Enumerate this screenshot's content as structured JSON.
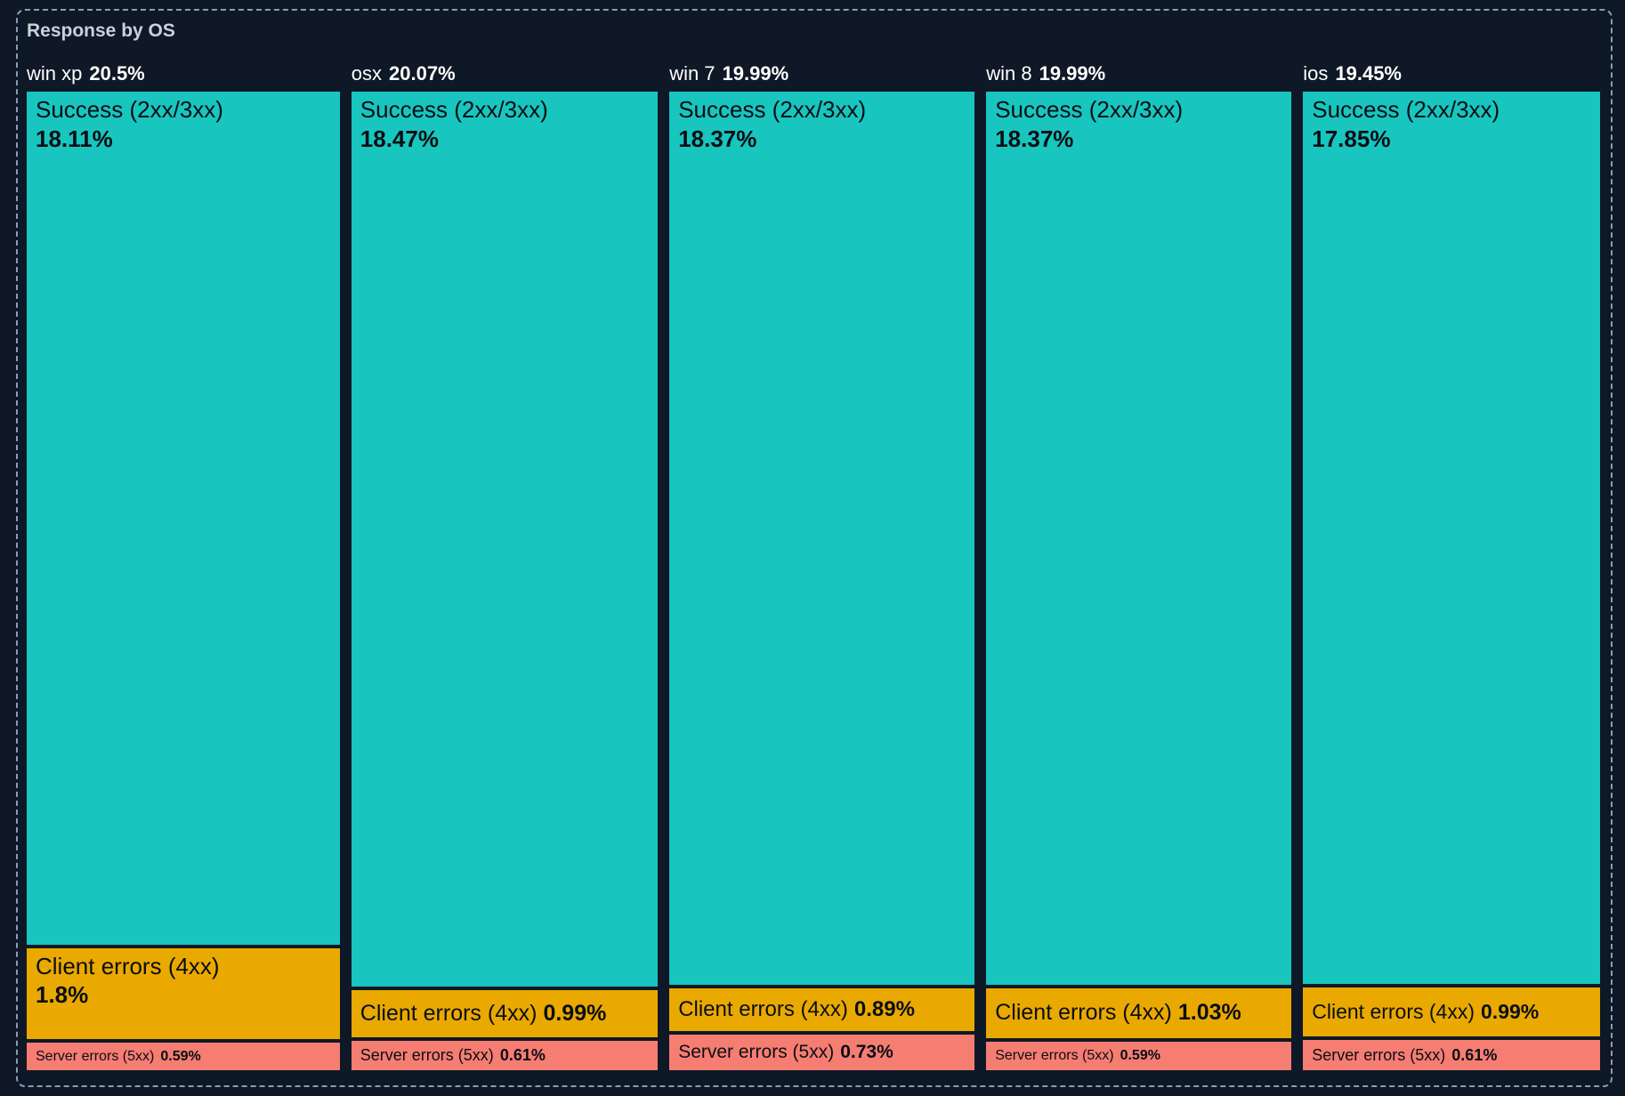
{
  "panel": {
    "title": "Response by OS"
  },
  "colors": {
    "background": "#0E1826",
    "border": "#8C9CB5",
    "title_text": "#C9D1DB",
    "header_text": "#FFFFFF",
    "success_fill": "#18C5BF",
    "client_fill": "#E9A900",
    "server_fill": "#F67D72",
    "label_text": "#0A0E14"
  },
  "chart_data": {
    "type": "treemap",
    "title": "Response by OS",
    "orientation": "columns",
    "unit": "percent",
    "groups": [
      {
        "name": "win xp",
        "share": 20.5,
        "share_label": "20.5%",
        "segments": [
          {
            "name": "Success (2xx/3xx)",
            "value": 18.11,
            "value_label": "18.11%",
            "category": "success"
          },
          {
            "name": "Client errors (4xx)",
            "value": 1.8,
            "value_label": "1.8%",
            "category": "client_errors"
          },
          {
            "name": "Server errors (5xx)",
            "value": 0.59,
            "value_label": "0.59%",
            "category": "server_errors"
          }
        ]
      },
      {
        "name": "osx",
        "share": 20.07,
        "share_label": "20.07%",
        "segments": [
          {
            "name": "Success (2xx/3xx)",
            "value": 18.47,
            "value_label": "18.47%",
            "category": "success"
          },
          {
            "name": "Client errors (4xx)",
            "value": 0.99,
            "value_label": "0.99%",
            "category": "client_errors"
          },
          {
            "name": "Server errors (5xx)",
            "value": 0.61,
            "value_label": "0.61%",
            "category": "server_errors"
          }
        ]
      },
      {
        "name": "win 7",
        "share": 19.99,
        "share_label": "19.99%",
        "segments": [
          {
            "name": "Success (2xx/3xx)",
            "value": 18.37,
            "value_label": "18.37%",
            "category": "success"
          },
          {
            "name": "Client errors (4xx)",
            "value": 0.89,
            "value_label": "0.89%",
            "category": "client_errors"
          },
          {
            "name": "Server errors (5xx)",
            "value": 0.73,
            "value_label": "0.73%",
            "category": "server_errors"
          }
        ]
      },
      {
        "name": "win 8",
        "share": 19.99,
        "share_label": "19.99%",
        "segments": [
          {
            "name": "Success (2xx/3xx)",
            "value": 18.37,
            "value_label": "18.37%",
            "category": "success"
          },
          {
            "name": "Client errors (4xx)",
            "value": 1.03,
            "value_label": "1.03%",
            "category": "client_errors"
          },
          {
            "name": "Server errors (5xx)",
            "value": 0.59,
            "value_label": "0.59%",
            "category": "server_errors"
          }
        ]
      },
      {
        "name": "ios",
        "share": 19.45,
        "share_label": "19.45%",
        "segments": [
          {
            "name": "Success (2xx/3xx)",
            "value": 17.85,
            "value_label": "17.85%",
            "category": "success"
          },
          {
            "name": "Client errors (4xx)",
            "value": 0.99,
            "value_label": "0.99%",
            "category": "client_errors"
          },
          {
            "name": "Server errors (5xx)",
            "value": 0.61,
            "value_label": "0.61%",
            "category": "server_errors"
          }
        ]
      }
    ]
  }
}
